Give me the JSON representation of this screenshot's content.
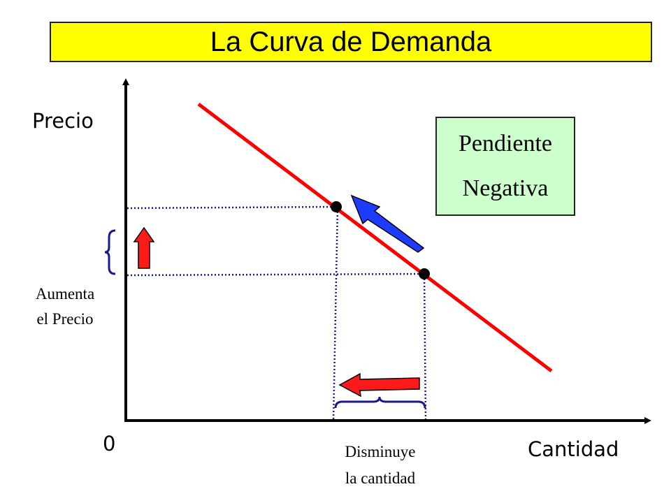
{
  "title": "La Curva de Demanda",
  "axes": {
    "y_label": "Precio",
    "x_label": "Cantidad",
    "origin_label": "0"
  },
  "slope_box": {
    "line1": "Pendiente",
    "line2": "Negativa"
  },
  "price_annotation": {
    "line1": "Aumenta",
    "line2": "el Precio"
  },
  "quantity_annotation": {
    "line1": "Disminuye",
    "line2": "la cantidad"
  },
  "colors": {
    "title_bg": "#ffff00",
    "slope_box_bg": "#ccffcc",
    "demand_line": "#ff0000",
    "movement_arrow": "#0000ff",
    "guide_lines": "#1a1a8c",
    "axis": "#000000"
  }
}
